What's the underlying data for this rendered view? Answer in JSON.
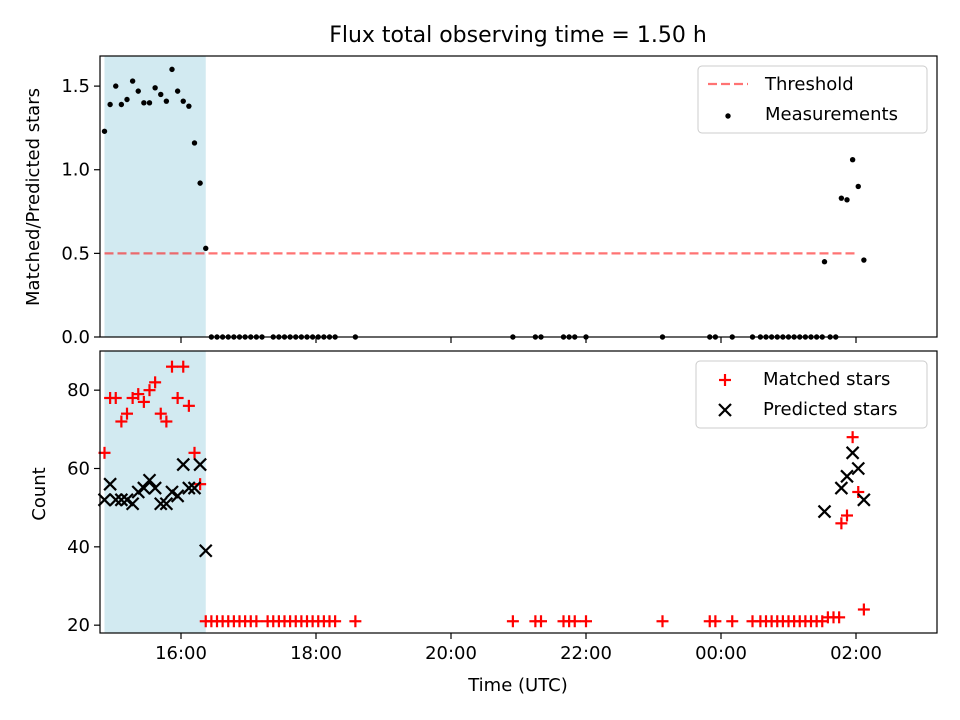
{
  "title": "Flux total observing time = 1.50 h",
  "xlabel": "Time (UTC)",
  "x_ticks": [
    "16:00",
    "18:00",
    "20:00",
    "22:00",
    "00:00",
    "02:00"
  ],
  "colors": {
    "highlight": "#add8e6",
    "threshold": "#ff0000",
    "measurements": "#000000",
    "matched": "#ff0000",
    "predicted": "#000000"
  },
  "chart_data": [
    {
      "type": "scatter",
      "panel": "top",
      "ylabel": "Matched/Predicted stars",
      "ylim": [
        0,
        1.68
      ],
      "y_ticks": [
        "0.0",
        "0.5",
        "1.0",
        "1.5"
      ],
      "xlim": [
        "14:48",
        "03:12"
      ],
      "highlight_span": [
        "14:52",
        "16:22"
      ],
      "legend_position": "top-right",
      "threshold": {
        "name": "Threshold",
        "value": 0.5,
        "x_range": [
          "14:52",
          "02:02"
        ]
      },
      "series": [
        {
          "name": "Measurements",
          "points": [
            [
              "14:52",
              1.23
            ],
            [
              "14:57",
              1.39
            ],
            [
              "15:02",
              1.5
            ],
            [
              "15:07",
              1.39
            ],
            [
              "15:12",
              1.42
            ],
            [
              "15:17",
              1.53
            ],
            [
              "15:22",
              1.47
            ],
            [
              "15:27",
              1.4
            ],
            [
              "15:32",
              1.4
            ],
            [
              "15:37",
              1.49
            ],
            [
              "15:42",
              1.45
            ],
            [
              "15:47",
              1.41
            ],
            [
              "15:52",
              1.6
            ],
            [
              "15:57",
              1.47
            ],
            [
              "16:02",
              1.41
            ],
            [
              "16:07",
              1.38
            ],
            [
              "16:12",
              1.16
            ],
            [
              "16:17",
              0.92
            ],
            [
              "16:22",
              0.53
            ],
            [
              "16:27",
              0.0
            ],
            [
              "16:32",
              0.0
            ],
            [
              "16:37",
              0.0
            ],
            [
              "16:42",
              0.0
            ],
            [
              "16:47",
              0.0
            ],
            [
              "16:52",
              0.0
            ],
            [
              "16:57",
              0.0
            ],
            [
              "17:02",
              0.0
            ],
            [
              "17:07",
              0.0
            ],
            [
              "17:12",
              0.0
            ],
            [
              "17:22",
              0.0
            ],
            [
              "17:27",
              0.0
            ],
            [
              "17:32",
              0.0
            ],
            [
              "17:37",
              0.0
            ],
            [
              "17:42",
              0.0
            ],
            [
              "17:47",
              0.0
            ],
            [
              "17:52",
              0.0
            ],
            [
              "17:57",
              0.0
            ],
            [
              "18:02",
              0.0
            ],
            [
              "18:07",
              0.0
            ],
            [
              "18:12",
              0.0
            ],
            [
              "18:17",
              0.0
            ],
            [
              "18:35",
              0.0
            ],
            [
              "20:55",
              0.0
            ],
            [
              "21:15",
              0.0
            ],
            [
              "21:20",
              0.0
            ],
            [
              "21:40",
              0.0
            ],
            [
              "21:45",
              0.0
            ],
            [
              "21:50",
              0.0
            ],
            [
              "22:00",
              0.0
            ],
            [
              "23:08",
              0.0
            ],
            [
              "23:50",
              0.0
            ],
            [
              "23:55",
              0.0
            ],
            [
              "00:10",
              0.0
            ],
            [
              "00:28",
              0.0
            ],
            [
              "00:35",
              0.0
            ],
            [
              "00:40",
              0.0
            ],
            [
              "00:45",
              0.0
            ],
            [
              "00:50",
              0.0
            ],
            [
              "00:55",
              0.0
            ],
            [
              "01:00",
              0.0
            ],
            [
              "01:05",
              0.0
            ],
            [
              "01:10",
              0.0
            ],
            [
              "01:15",
              0.0
            ],
            [
              "01:20",
              0.0
            ],
            [
              "01:25",
              0.0
            ],
            [
              "01:30",
              0.0
            ],
            [
              "01:37",
              0.0
            ],
            [
              "01:42",
              0.0
            ],
            [
              "01:32",
              0.45
            ],
            [
              "01:47",
              0.83
            ],
            [
              "01:52",
              0.82
            ],
            [
              "01:57",
              1.06
            ],
            [
              "02:02",
              0.9
            ],
            [
              "02:07",
              0.46
            ]
          ]
        }
      ]
    },
    {
      "type": "scatter",
      "panel": "bottom",
      "ylabel": "Count",
      "ylim": [
        18,
        90
      ],
      "y_ticks": [
        "20",
        "40",
        "60",
        "80"
      ],
      "xlim": [
        "14:48",
        "03:12"
      ],
      "highlight_span": [
        "14:52",
        "16:22"
      ],
      "legend_position": "top-right",
      "series": [
        {
          "name": "Matched stars",
          "marker": "plus",
          "points": [
            [
              "14:52",
              64
            ],
            [
              "14:57",
              78
            ],
            [
              "15:02",
              78
            ],
            [
              "15:07",
              72
            ],
            [
              "15:12",
              74
            ],
            [
              "15:17",
              78
            ],
            [
              "15:22",
              79
            ],
            [
              "15:27",
              77
            ],
            [
              "15:32",
              80
            ],
            [
              "15:37",
              82
            ],
            [
              "15:42",
              74
            ],
            [
              "15:47",
              72
            ],
            [
              "15:52",
              86
            ],
            [
              "15:57",
              78
            ],
            [
              "16:02",
              86
            ],
            [
              "16:07",
              76
            ],
            [
              "16:12",
              64
            ],
            [
              "16:17",
              56
            ],
            [
              "16:22",
              21
            ],
            [
              "16:27",
              21
            ],
            [
              "16:32",
              21
            ],
            [
              "16:37",
              21
            ],
            [
              "16:42",
              21
            ],
            [
              "16:47",
              21
            ],
            [
              "16:52",
              21
            ],
            [
              "16:57",
              21
            ],
            [
              "17:02",
              21
            ],
            [
              "17:07",
              21
            ],
            [
              "17:17",
              21
            ],
            [
              "17:22",
              21
            ],
            [
              "17:27",
              21
            ],
            [
              "17:32",
              21
            ],
            [
              "17:37",
              21
            ],
            [
              "17:42",
              21
            ],
            [
              "17:47",
              21
            ],
            [
              "17:52",
              21
            ],
            [
              "17:57",
              21
            ],
            [
              "18:02",
              21
            ],
            [
              "18:07",
              21
            ],
            [
              "18:12",
              21
            ],
            [
              "18:17",
              21
            ],
            [
              "18:35",
              21
            ],
            [
              "20:55",
              21
            ],
            [
              "21:15",
              21
            ],
            [
              "21:20",
              21
            ],
            [
              "21:40",
              21
            ],
            [
              "21:45",
              21
            ],
            [
              "21:50",
              21
            ],
            [
              "22:00",
              21
            ],
            [
              "23:08",
              21
            ],
            [
              "23:50",
              21
            ],
            [
              "23:55",
              21
            ],
            [
              "00:10",
              21
            ],
            [
              "00:28",
              21
            ],
            [
              "00:35",
              21
            ],
            [
              "00:40",
              21
            ],
            [
              "00:45",
              21
            ],
            [
              "00:50",
              21
            ],
            [
              "00:55",
              21
            ],
            [
              "01:00",
              21
            ],
            [
              "01:05",
              21
            ],
            [
              "01:10",
              21
            ],
            [
              "01:15",
              21
            ],
            [
              "01:20",
              21
            ],
            [
              "01:25",
              21
            ],
            [
              "01:30",
              21
            ],
            [
              "01:35",
              22
            ],
            [
              "01:40",
              22
            ],
            [
              "01:45",
              22
            ],
            [
              "01:47",
              46
            ],
            [
              "01:52",
              48
            ],
            [
              "01:57",
              68
            ],
            [
              "02:02",
              54
            ],
            [
              "02:07",
              24
            ]
          ]
        },
        {
          "name": "Predicted stars",
          "marker": "x",
          "points": [
            [
              "14:52",
              52
            ],
            [
              "14:57",
              56
            ],
            [
              "15:02",
              52
            ],
            [
              "15:07",
              52
            ],
            [
              "15:12",
              52
            ],
            [
              "15:17",
              51
            ],
            [
              "15:22",
              54
            ],
            [
              "15:27",
              55
            ],
            [
              "15:32",
              57
            ],
            [
              "15:37",
              55
            ],
            [
              "15:42",
              51
            ],
            [
              "15:47",
              51
            ],
            [
              "15:52",
              54
            ],
            [
              "15:57",
              53
            ],
            [
              "16:02",
              61
            ],
            [
              "16:07",
              55
            ],
            [
              "16:12",
              55
            ],
            [
              "16:17",
              61
            ],
            [
              "16:22",
              39
            ],
            [
              "01:32",
              49
            ],
            [
              "01:47",
              55
            ],
            [
              "01:52",
              58
            ],
            [
              "01:57",
              64
            ],
            [
              "02:02",
              60
            ],
            [
              "02:07",
              52
            ]
          ]
        }
      ]
    }
  ]
}
